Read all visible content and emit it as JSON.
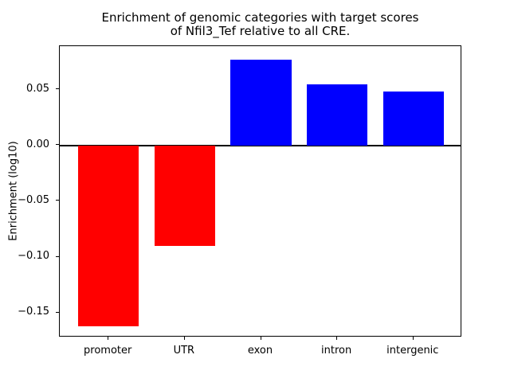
{
  "chart_data": {
    "type": "bar",
    "title": "Enrichment of genomic categories with target scores\nof Nfil3_Tef relative to all CRE.",
    "xlabel": "",
    "ylabel": "Enrichment (log10)",
    "categories": [
      "promoter",
      "UTR",
      "exon",
      "intron",
      "intergenic"
    ],
    "values": [
      -0.162,
      -0.09,
      0.077,
      0.055,
      0.048
    ],
    "bar_colors": [
      "#ff0000",
      "#ff0000",
      "#0000ff",
      "#0000ff",
      "#0000ff"
    ],
    "negative_color": "#ff0000",
    "positive_color": "#0000ff",
    "ylim": [
      -0.172,
      0.089
    ],
    "yticks": [
      0.05,
      0.0,
      -0.05,
      -0.1,
      -0.15
    ],
    "ytick_labels": [
      "0.05",
      "0.00",
      "−0.05",
      "−0.10",
      "−0.15"
    ],
    "zero_line": true,
    "grid": false,
    "legend_position": "none",
    "axis_color": "#000000",
    "text_color": "#000000",
    "background_color": "#ffffff"
  }
}
